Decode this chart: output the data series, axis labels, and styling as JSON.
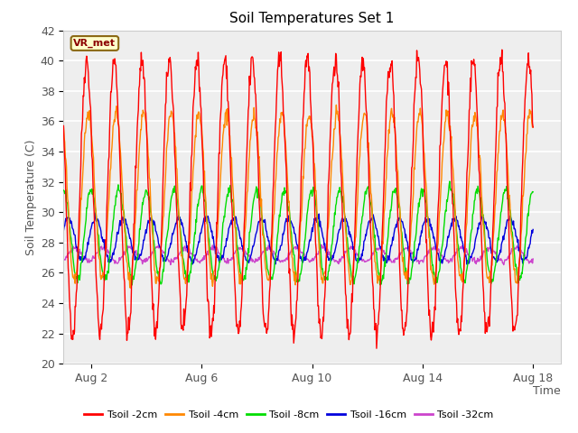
{
  "title": "Soil Temperatures Set 1",
  "xlabel": "Time",
  "ylabel": "Soil Temperature (C)",
  "ylim": [
    20,
    42
  ],
  "yticks": [
    20,
    22,
    24,
    26,
    28,
    30,
    32,
    34,
    36,
    38,
    40,
    42
  ],
  "fig_bg": "#ffffff",
  "plot_bg": "#ffffff",
  "annotation_text": "VR_met",
  "annotation_bg": "#ffffcc",
  "annotation_border": "#8b6914",
  "annotation_text_color": "#8b0000",
  "legend_entries": [
    "Tsoil -2cm",
    "Tsoil -4cm",
    "Tsoil -8cm",
    "Tsoil -16cm",
    "Tsoil -32cm"
  ],
  "line_colors": [
    "#ff0000",
    "#ff8800",
    "#00dd00",
    "#0000dd",
    "#cc44cc"
  ],
  "x_tick_labels": [
    "Aug 2",
    "Aug 6",
    "Aug 10",
    "Aug 14",
    "Aug 18"
  ],
  "x_tick_positions": [
    1,
    5,
    9,
    13,
    17
  ],
  "xlim": [
    0,
    18
  ],
  "seed": 42
}
